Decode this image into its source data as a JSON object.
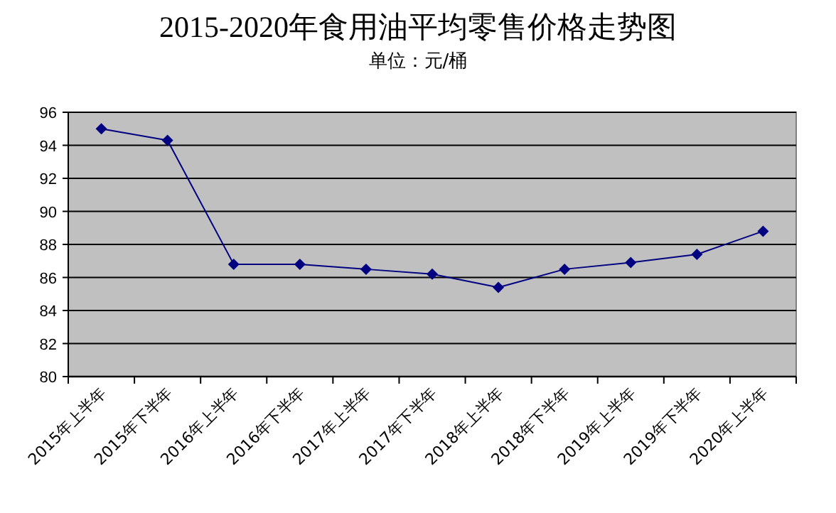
{
  "chart_data": {
    "type": "line",
    "title": "2015-2020年食用油平均零售价格走势图",
    "subtitle": "单位：元/桶",
    "categories": [
      "2015年上半年",
      "2015年下半年",
      "2016年上半年",
      "2016年下半年",
      "2017年上半年",
      "2017年下半年",
      "2018年上半年",
      "2018年下半年",
      "2019年上半年",
      "2019年下半年",
      "2020年上半年"
    ],
    "series": [
      {
        "color": "#000080",
        "values": [
          95.0,
          94.3,
          86.8,
          86.8,
          86.5,
          86.2,
          85.4,
          86.5,
          86.9,
          87.4,
          88.8
        ]
      }
    ],
    "ylim": [
      80,
      96
    ],
    "yticks": [
      80,
      82,
      84,
      86,
      88,
      90,
      92,
      94,
      96
    ],
    "grid": "y",
    "marker": "diamond"
  }
}
